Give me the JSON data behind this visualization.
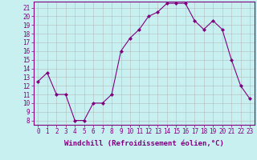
{
  "x": [
    0,
    1,
    2,
    3,
    4,
    5,
    6,
    7,
    8,
    9,
    10,
    11,
    12,
    13,
    14,
    15,
    16,
    17,
    18,
    19,
    20,
    21,
    22,
    23
  ],
  "y": [
    12.5,
    13.5,
    11.0,
    11.0,
    8.0,
    8.0,
    10.0,
    10.0,
    11.0,
    16.0,
    17.5,
    18.5,
    20.0,
    20.5,
    21.5,
    21.5,
    21.5,
    19.5,
    18.5,
    19.5,
    18.5,
    15.0,
    12.0,
    10.5
  ],
  "line_color": "#800080",
  "marker": "D",
  "marker_size": 2,
  "bg_color": "#c8f0f0",
  "grid_color": "#b0b0b0",
  "xlabel": "Windchill (Refroidissement éolien,°C)",
  "xlim": [
    -0.5,
    23.5
  ],
  "ylim": [
    7.5,
    21.7
  ],
  "yticks": [
    8,
    9,
    10,
    11,
    12,
    13,
    14,
    15,
    16,
    17,
    18,
    19,
    20,
    21
  ],
  "xticks": [
    0,
    1,
    2,
    3,
    4,
    5,
    6,
    7,
    8,
    9,
    10,
    11,
    12,
    13,
    14,
    15,
    16,
    17,
    18,
    19,
    20,
    21,
    22,
    23
  ],
  "tick_color": "#800080",
  "tick_fontsize": 5.5,
  "xlabel_fontsize": 6.5,
  "spine_color": "#800080",
  "line_width": 0.8
}
